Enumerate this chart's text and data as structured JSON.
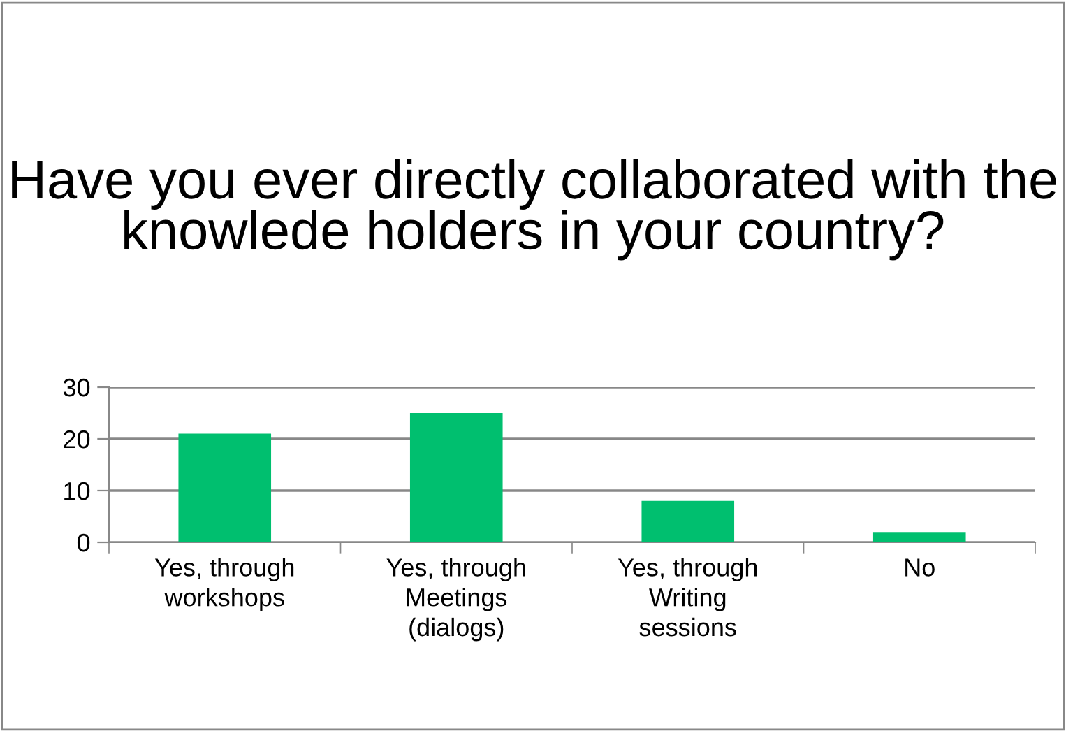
{
  "chart_data": {
    "type": "bar",
    "title": "Have you ever directly collaborated with the knowlede holders in your country?",
    "categories": [
      "Yes, through\nworkshops",
      "Yes, through\nMeetings\n(dialogs)",
      "Yes, through\nWriting\nsessions",
      "No"
    ],
    "values": [
      21,
      25,
      8,
      2
    ],
    "color": "#00bf6f",
    "ylim": [
      0,
      30
    ],
    "yticks": [
      0,
      10,
      20,
      30
    ],
    "grid": "y"
  }
}
